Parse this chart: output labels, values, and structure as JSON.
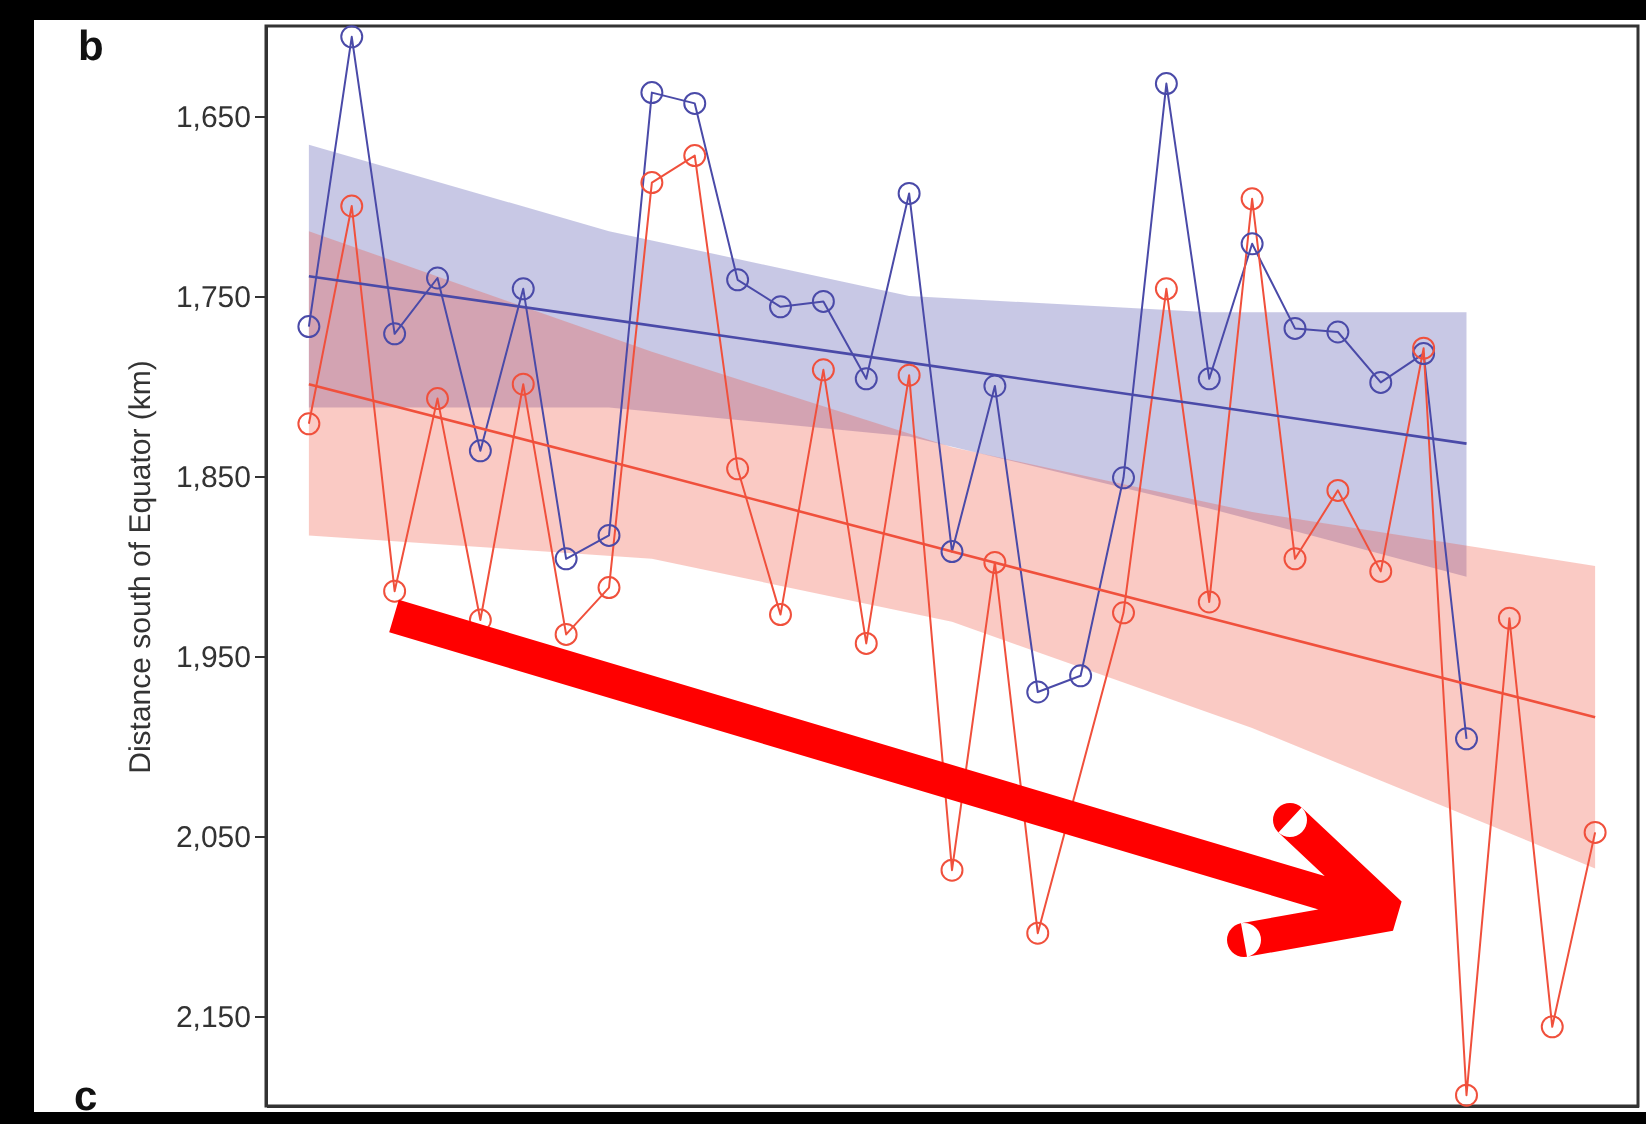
{
  "chart_data": {
    "type": "line",
    "title": "b",
    "ylabel": "Distance south of Equator (km)",
    "annotations": [
      "c"
    ],
    "categories": [
      null,
      null,
      null,
      null,
      null,
      null,
      null,
      null,
      null,
      null,
      null,
      null,
      null,
      null,
      null,
      null,
      null,
      null,
      null,
      null,
      null,
      null,
      null,
      null,
      null,
      null,
      null,
      null,
      null,
      null,
      null
    ],
    "ylim": [
      2200,
      1600
    ],
    "yticks": [
      {
        "value": 1650,
        "label": "1,650"
      },
      {
        "value": 1750,
        "label": "1,750"
      },
      {
        "value": 1850,
        "label": "1,850"
      },
      {
        "value": 1950,
        "label": "1,950"
      },
      {
        "value": 2050,
        "label": "2,050"
      },
      {
        "value": 2150,
        "label": "2,150"
      }
    ],
    "tick_labels": "y",
    "marker": "circle",
    "line_style": "solid",
    "series": [
      {
        "color": "#4a4aa8",
        "values": [
          1767,
          1606,
          1771,
          1740,
          1836,
          1746,
          1896,
          1883,
          1637,
          1643,
          1741,
          1756,
          1753,
          1796,
          1693,
          1892,
          1800,
          1970,
          1961,
          1851,
          1632,
          1796,
          1721,
          1768,
          1770,
          1798,
          1782,
          1996,
          null,
          null,
          null
        ]
      },
      {
        "color": "#f0503c",
        "values": [
          1821,
          1700,
          1914,
          1807,
          1930,
          1799,
          1938,
          1912,
          1687,
          1672,
          1846,
          1927,
          1791,
          1943,
          1794,
          2069,
          1898,
          2104,
          null,
          1926,
          1746,
          1920,
          1696,
          1896,
          1858,
          1903,
          1779,
          2194,
          1929,
          2156,
          2048
        ]
      },
      {
        "type": "line",
        "marker": "none",
        "color": "#4a4aa8",
        "values": [
          1739,
          null,
          null,
          null,
          null,
          null,
          null,
          1763,
          null,
          null,
          null,
          null,
          null,
          null,
          1787,
          null,
          null,
          null,
          null,
          null,
          null,
          1811,
          null,
          null,
          null,
          null,
          null,
          1832,
          null,
          null,
          null
        ],
        "lower": [
          1812,
          null,
          null,
          null,
          null,
          null,
          null,
          1812,
          null,
          null,
          null,
          null,
          null,
          null,
          1828,
          null,
          null,
          null,
          null,
          null,
          null,
          1868,
          null,
          null,
          null,
          null,
          null,
          1906,
          null,
          null,
          null
        ],
        "upper": [
          1666,
          null,
          null,
          null,
          null,
          null,
          null,
          1714,
          null,
          null,
          null,
          null,
          null,
          null,
          1750,
          null,
          null,
          null,
          null,
          null,
          null,
          1759,
          null,
          null,
          null,
          null,
          null,
          1759,
          null,
          null,
          null
        ]
      },
      {
        "type": "line",
        "marker": "none",
        "color": "#f0503c",
        "values": [
          1799,
          null,
          null,
          null,
          null,
          null,
          null,
          null,
          1848,
          null,
          null,
          null,
          null,
          null,
          null,
          1892,
          null,
          null,
          null,
          null,
          null,
          null,
          1935,
          null,
          null,
          null,
          null,
          null,
          null,
          null,
          1984
        ],
        "lower": [
          1883,
          null,
          null,
          null,
          null,
          null,
          null,
          null,
          1896,
          null,
          null,
          null,
          null,
          null,
          null,
          1931,
          null,
          null,
          null,
          null,
          null,
          null,
          1990,
          null,
          null,
          null,
          null,
          null,
          null,
          null,
          2068
        ],
        "upper": [
          1714,
          null,
          null,
          null,
          null,
          null,
          null,
          null,
          1781,
          null,
          null,
          null,
          null,
          null,
          null,
          1834,
          null,
          null,
          null,
          null,
          null,
          null,
          1870,
          null,
          null,
          null,
          null,
          null,
          null,
          null,
          1900
        ]
      }
    ]
  }
}
